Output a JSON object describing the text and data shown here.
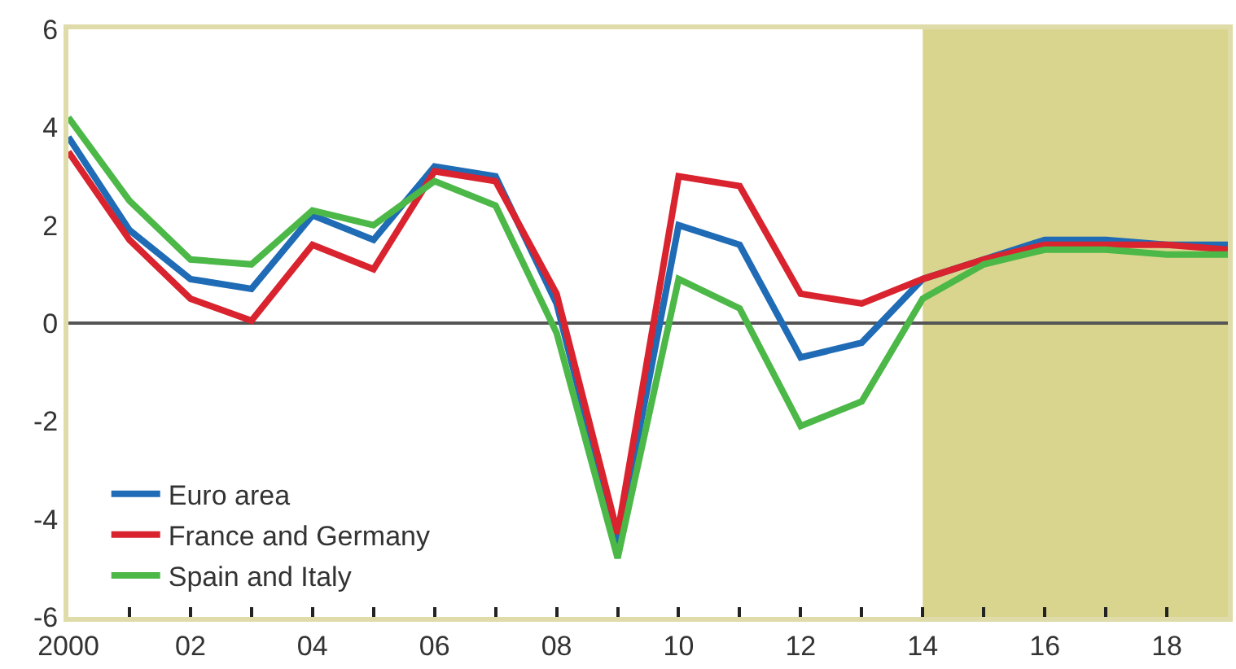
{
  "chart_data": {
    "type": "line",
    "x": [
      2000,
      2001,
      2002,
      2003,
      2004,
      2005,
      2006,
      2007,
      2008,
      2009,
      2010,
      2011,
      2012,
      2013,
      2014,
      2015,
      2016,
      2017,
      2018,
      2019
    ],
    "series": [
      {
        "name": "Euro area",
        "color": "#1f6bb5",
        "values": [
          3.8,
          1.9,
          0.9,
          0.7,
          2.2,
          1.7,
          3.2,
          3.0,
          0.4,
          -4.5,
          2.0,
          1.6,
          -0.7,
          -0.4,
          0.9,
          1.3,
          1.7,
          1.7,
          1.6,
          1.6
        ]
      },
      {
        "name": "France and Germany",
        "color": "#d9232e",
        "values": [
          3.5,
          1.7,
          0.5,
          0.05,
          1.6,
          1.1,
          3.1,
          2.9,
          0.6,
          -4.3,
          3.0,
          2.8,
          0.6,
          0.4,
          0.9,
          1.3,
          1.6,
          1.6,
          1.6,
          1.5
        ]
      },
      {
        "name": "Spain and Italy",
        "color": "#4cb848",
        "values": [
          4.2,
          2.5,
          1.3,
          1.2,
          2.3,
          2.0,
          2.9,
          2.4,
          -0.2,
          -4.8,
          0.9,
          0.3,
          -2.1,
          -1.6,
          0.5,
          1.2,
          1.5,
          1.5,
          1.4,
          1.4
        ]
      }
    ],
    "xlim": [
      2000,
      2019
    ],
    "xticks": [
      {
        "value": 2000,
        "label": "2000"
      },
      {
        "value": 2001,
        "label": null
      },
      {
        "value": 2002,
        "label": "02"
      },
      {
        "value": 2003,
        "label": null
      },
      {
        "value": 2004,
        "label": "04"
      },
      {
        "value": 2005,
        "label": null
      },
      {
        "value": 2006,
        "label": "06"
      },
      {
        "value": 2007,
        "label": null
      },
      {
        "value": 2008,
        "label": "08"
      },
      {
        "value": 2009,
        "label": null
      },
      {
        "value": 2010,
        "label": "10"
      },
      {
        "value": 2011,
        "label": null
      },
      {
        "value": 2012,
        "label": "12"
      },
      {
        "value": 2013,
        "label": null
      },
      {
        "value": 2014,
        "label": "14"
      },
      {
        "value": 2015,
        "label": null
      },
      {
        "value": 2016,
        "label": "16"
      },
      {
        "value": 2017,
        "label": null
      },
      {
        "value": 2018,
        "label": "18"
      },
      {
        "value": 2019,
        "label": null
      }
    ],
    "ylim": [
      -6,
      6
    ],
    "yticks": [
      -6,
      -4,
      -2,
      0,
      2,
      4,
      6
    ],
    "ref_lines": [
      {
        "axis": "y",
        "value": 0,
        "color": "#555555"
      }
    ],
    "bands": [
      {
        "axis": "x",
        "from": 2014,
        "to": 2019,
        "color": "#d9d58e"
      }
    ],
    "grid": false,
    "legend": "bottom left",
    "marker": "none",
    "line_style": "solid"
  }
}
